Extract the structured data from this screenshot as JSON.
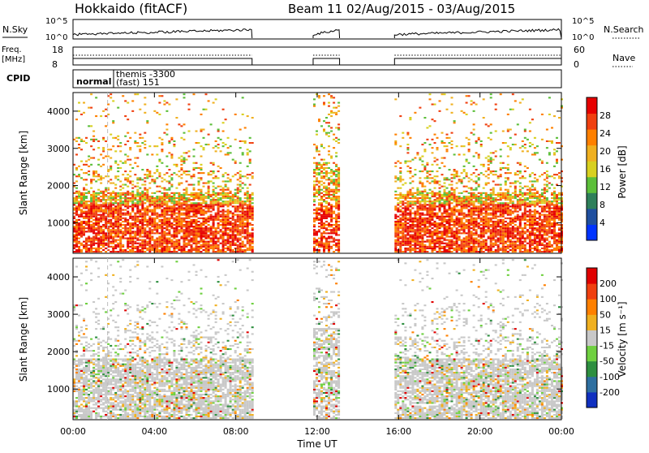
{
  "header": {
    "station": "Hokkaido (fitACF)",
    "beam_info": "Beam 11  02/Aug/2015 - 03/Aug/2015"
  },
  "summary": {
    "nsky_label": "N.Sky",
    "nsky_ticks": [
      "10^5",
      "10^0"
    ],
    "nsearch_label": "N.Search",
    "nsearch_ticks": [
      "10^5",
      "10^0"
    ],
    "freq_label_line1": "Freq.",
    "freq_label_line2": "[MHz]",
    "freq_ticks": [
      "18",
      "8"
    ],
    "nave_label": "Nave",
    "nave_ticks": [
      "60",
      "0"
    ],
    "cpid_label": "CPID",
    "cpid_entries": [
      "normal",
      "themis -3300",
      "(fast) 151"
    ],
    "data_segments_hours": [
      [
        0,
        8.8
      ],
      [
        11.8,
        13.1
      ],
      [
        15.8,
        24
      ]
    ]
  },
  "chart_data": [
    {
      "type": "heatmap",
      "parameter": "Power",
      "ylabel": "Slant Range [km]",
      "ylim": [
        180,
        4500
      ],
      "yticks": [
        "1000",
        "2000",
        "3000",
        "4000"
      ],
      "xlim": [
        0,
        24
      ],
      "colorbar_label": "Power [dB]",
      "colorbar_ticks": [
        "28",
        "24",
        "20",
        "16",
        "12",
        "8",
        "4"
      ],
      "colors": [
        "#0033ff",
        "#1f4f9f",
        "#2e7f5a",
        "#5cbf3a",
        "#d8d020",
        "#f0b020",
        "#ff8000",
        "#f04010",
        "#e60000"
      ]
    },
    {
      "type": "heatmap",
      "parameter": "Velocity",
      "ylabel": "Slant Range [km]",
      "ylim": [
        180,
        4500
      ],
      "yticks": [
        "1000",
        "2000",
        "3000",
        "4000"
      ],
      "xlim": [
        0,
        24
      ],
      "xlabel": "Time UT",
      "xticks": [
        "00:00",
        "04:00",
        "08:00",
        "12:00",
        "16:00",
        "20:00",
        "00:00"
      ],
      "colorbar_label": "Velocity [m s⁻¹]",
      "colorbar_ticks": [
        "200",
        "100",
        "50",
        "15",
        "-15",
        "-50",
        "-100",
        "-200"
      ],
      "colors": [
        "#1030c0",
        "#2e6fa0",
        "#2e8f40",
        "#6fd040",
        "#c8c8c8",
        "#f0b020",
        "#ff8000",
        "#f04010",
        "#e00000"
      ]
    }
  ]
}
